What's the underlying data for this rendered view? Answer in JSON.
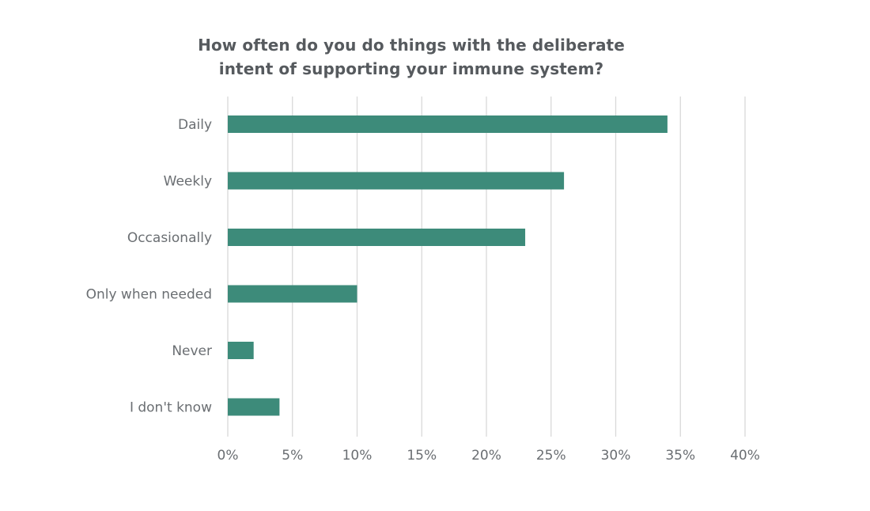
{
  "chart_data": {
    "type": "bar",
    "orientation": "horizontal",
    "title": "How often do you do things with the deliberate intent of supporting your immune system?",
    "title_lines": [
      "How often do you do things with the deliberate",
      "intent of supporting your immune system?"
    ],
    "categories": [
      "Daily",
      "Weekly",
      "Occasionally",
      "Only when needed",
      "Never",
      "I don't know"
    ],
    "values": [
      34,
      26,
      23,
      10,
      2,
      4
    ],
    "xlabel": "",
    "ylabel": "",
    "xlim": [
      0,
      40
    ],
    "x_ticks": [
      0,
      5,
      10,
      15,
      20,
      25,
      30,
      35,
      40
    ],
    "x_tick_labels": [
      "0%",
      "5%",
      "10%",
      "15%",
      "20%",
      "25%",
      "30%",
      "35%",
      "40%"
    ],
    "grid": true,
    "legend": "none",
    "colors": {
      "bar": "#3d8b7a",
      "grid": "#d9d9d9",
      "text": "#6a6e72",
      "title": "#565a5e"
    }
  }
}
